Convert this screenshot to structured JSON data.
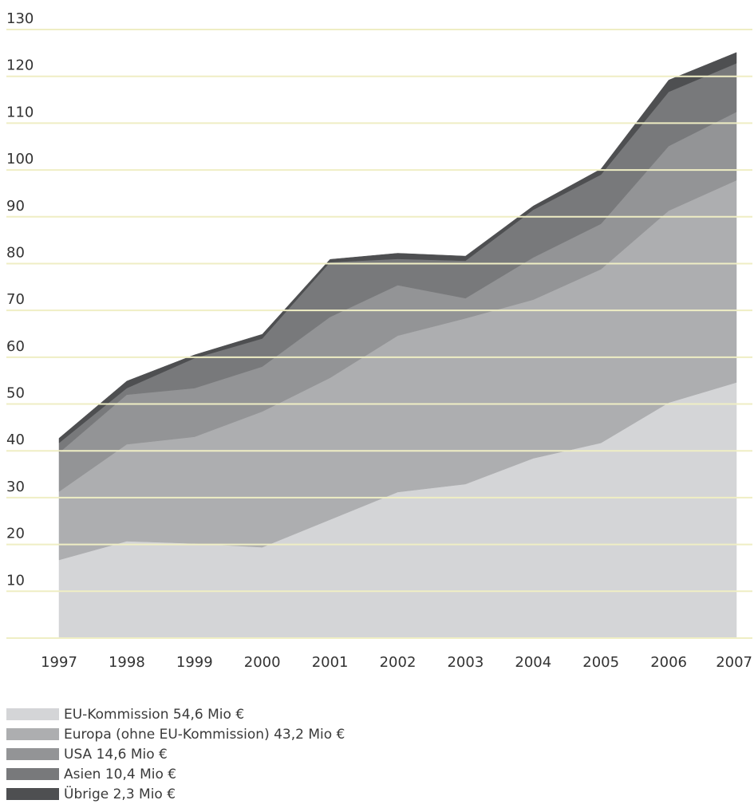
{
  "chart_data": {
    "type": "area",
    "stacked": true,
    "x": [
      "1997",
      "1998",
      "1999",
      "2000",
      "2001",
      "2002",
      "2003",
      "2004",
      "2005",
      "2006",
      "2007"
    ],
    "ylim": [
      0,
      130
    ],
    "yticks": [
      10,
      20,
      30,
      40,
      50,
      60,
      70,
      80,
      90,
      100,
      110,
      120,
      130
    ],
    "grid": true,
    "legend_position": "bottom-left",
    "series": [
      {
        "name": "EU-Kommission 54,6 Mio €",
        "color": "#d4d5d7",
        "values": [
          16.7,
          20.7,
          20.2,
          19.4,
          25.3,
          31.2,
          32.9,
          38.4,
          41.7,
          50.3,
          54.6
        ]
      },
      {
        "name": "Europa (ohne EU-Kommission) 43,2 Mio €",
        "color": "#adaeb0",
        "values": [
          14.6,
          20.7,
          22.8,
          29.0,
          30.3,
          33.4,
          35.4,
          33.9,
          37.1,
          41.0,
          43.2
        ]
      },
      {
        "name": "USA 14,6 Mio €",
        "color": "#939496",
        "values": [
          8.3,
          10.6,
          10.4,
          9.6,
          13.0,
          10.8,
          4.3,
          9.0,
          9.7,
          13.8,
          14.6
        ]
      },
      {
        "name": "Asien 10,4 Mio €",
        "color": "#78797b",
        "values": [
          2.1,
          1.4,
          6.4,
          6.0,
          11.7,
          5.6,
          8.0,
          10.2,
          10.5,
          11.6,
          10.4
        ]
      },
      {
        "name": "Übrige 2,3 Mio €",
        "color": "#4e4f51",
        "values": [
          1.0,
          1.5,
          0.7,
          0.9,
          0.6,
          1.2,
          1.0,
          0.8,
          1.2,
          2.5,
          2.3
        ]
      }
    ]
  }
}
